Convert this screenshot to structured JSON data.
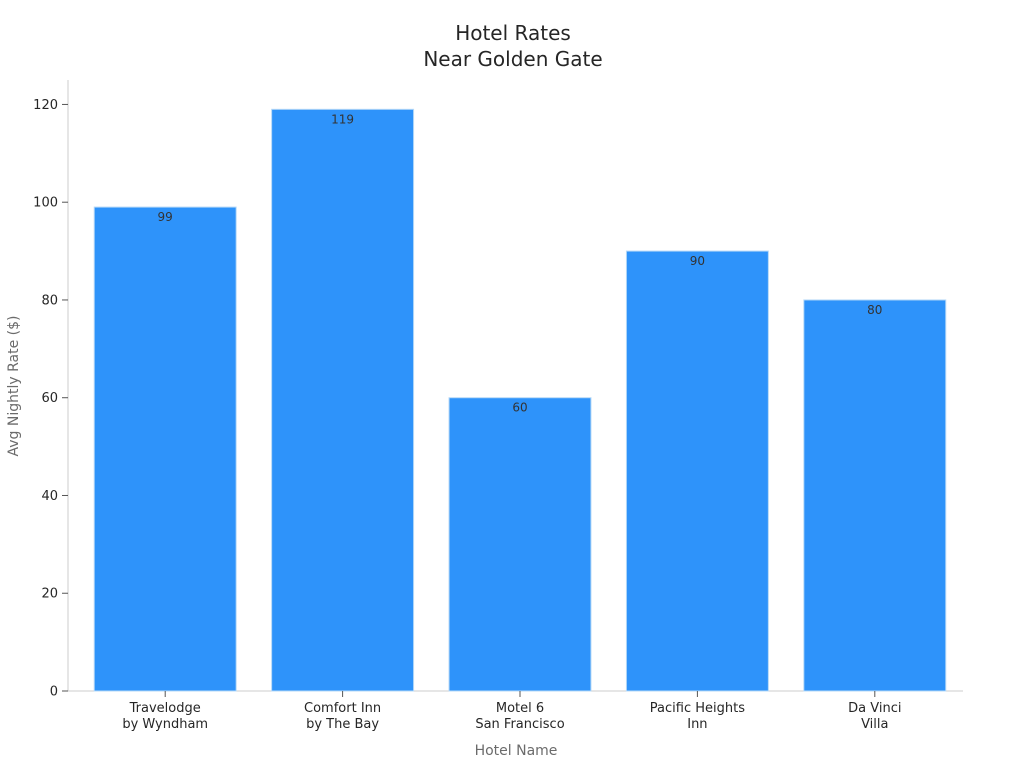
{
  "chart_data": {
    "type": "bar",
    "title": [
      "Hotel Rates",
      "Near Golden Gate"
    ],
    "xlabel": "Hotel Name",
    "ylabel": "Avg Nightly Rate ($)",
    "categories": [
      [
        "Travelodge",
        "by Wyndham"
      ],
      [
        "Comfort Inn",
        "by The Bay"
      ],
      [
        "Motel 6",
        "San Francisco"
      ],
      [
        "Pacific Heights",
        "Inn"
      ],
      [
        "Da Vinci",
        "Villa"
      ]
    ],
    "values": [
      99,
      119,
      60,
      90,
      80
    ],
    "data_labels": [
      "99",
      "119",
      "60",
      "90",
      "80"
    ],
    "ylim": [
      0,
      125
    ],
    "yticks": [
      0,
      20,
      40,
      60,
      80,
      100,
      120
    ],
    "ytick_labels": [
      "0",
      "20",
      "40",
      "60",
      "80",
      "100",
      "120"
    ],
    "grid": false,
    "legend": "none",
    "bar_color": "#2e93fa",
    "bar_edge_color": "#b5d8f7"
  }
}
